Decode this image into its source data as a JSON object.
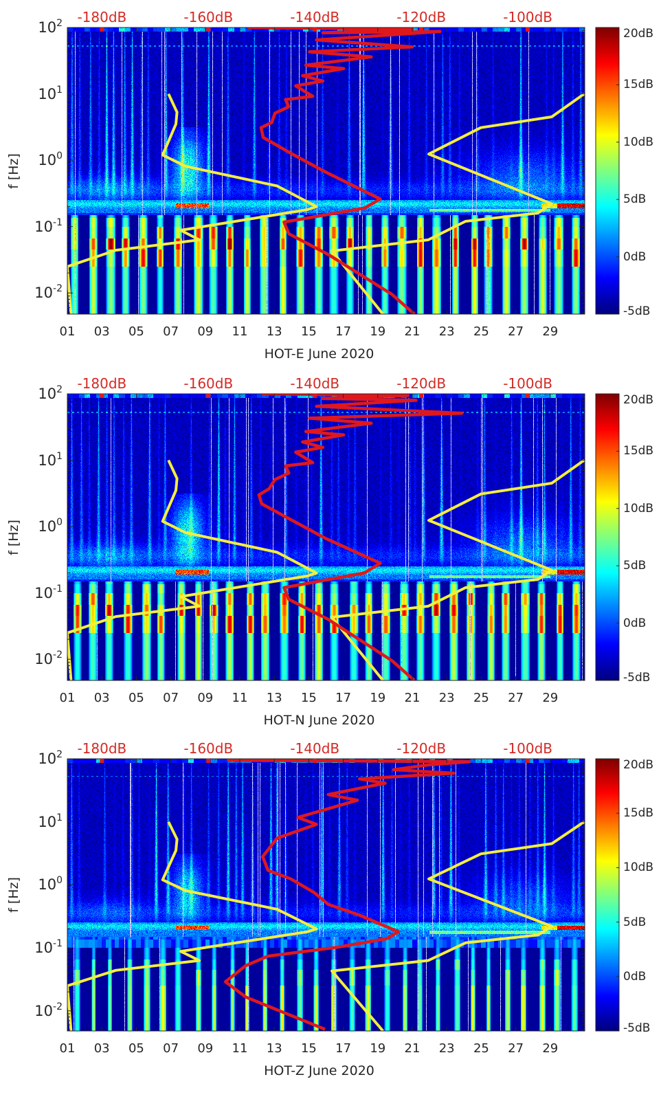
{
  "chart_data": [
    {
      "type": "heatmap",
      "title": "",
      "xlabel": "HOT-E June 2020",
      "ylabel": "f [Hz]",
      "x_ticks": [
        "01",
        "03",
        "05",
        "07",
        "09",
        "11",
        "13",
        "15",
        "17",
        "19",
        "21",
        "23",
        "25",
        "27",
        "29"
      ],
      "xlim": [
        1,
        31
      ],
      "yscale": "log",
      "ylim": [
        0.0048,
        100
      ],
      "y_ticks": [
        {
          "base": "10",
          "exp": "2",
          "value": 100
        },
        {
          "base": "10",
          "exp": "1",
          "value": 10
        },
        {
          "base": "10",
          "exp": "0",
          "value": 1
        },
        {
          "base": "10",
          "exp": "-1",
          "value": 0.1
        },
        {
          "base": "10",
          "exp": "-2",
          "value": 0.01
        }
      ],
      "top_axis": {
        "range": [
          -186.5,
          -89.3
        ],
        "ticks": [
          {
            "label": "-180dB",
            "value": -180
          },
          {
            "label": "-160dB",
            "value": -160
          },
          {
            "label": "-140dB",
            "value": -140
          },
          {
            "label": "-120dB",
            "value": -120
          },
          {
            "label": "-100dB",
            "value": -100
          }
        ]
      },
      "colorbar": {
        "colormap": "jet",
        "range": [
          -5,
          20
        ],
        "ticks": [
          {
            "label": "20dB",
            "value": 20
          },
          {
            "label": "15dB",
            "value": 15
          },
          {
            "label": "10dB",
            "value": 10
          },
          {
            "label": "5dB",
            "value": 5
          },
          {
            "label": "0dB",
            "value": 0
          },
          {
            "label": "-5dB",
            "value": -5
          }
        ]
      },
      "curves": [
        {
          "color": "#f4ee3c",
          "points": [
            [
              -167.5,
              10
            ],
            [
              -165.9,
              5.3
            ],
            [
              -166.1,
              3.5
            ],
            [
              -168.6,
              1.2
            ],
            [
              -164.3,
              0.81
            ],
            [
              -147.1,
              0.41
            ],
            [
              -139.7,
              0.2
            ],
            [
              -141.4,
              0.18
            ],
            [
              -165.2,
              0.088
            ],
            [
              -161.7,
              0.063
            ],
            [
              -177.4,
              0.044
            ],
            [
              -186.5,
              0.025
            ],
            [
              -185.8,
              0.0048
            ]
          ]
        },
        {
          "color": "#f4ee3c",
          "points": [
            [
              -89.4,
              10
            ],
            [
              -95.5,
              4.5
            ],
            [
              -108.8,
              3.1
            ],
            [
              -118.6,
              1.24
            ],
            [
              -95.5,
              0.22
            ],
            [
              -98.1,
              0.16
            ],
            [
              -111.7,
              0.12
            ],
            [
              -118.7,
              0.063
            ],
            [
              -136.8,
              0.043
            ],
            [
              -127.2,
              0.0048
            ]
          ]
        },
        {
          "color": "#e0181c",
          "points": [
            [
              -152.6,
              100
            ],
            [
              -121.7,
              95
            ],
            [
              -138.5,
              83
            ],
            [
              -116.5,
              87
            ],
            [
              -139.7,
              65
            ],
            [
              -121.7,
              51
            ],
            [
              -141.0,
              43
            ],
            [
              -129.4,
              36
            ],
            [
              -141.7,
              27
            ],
            [
              -134.6,
              24
            ],
            [
              -142.3,
              18.8
            ],
            [
              -138.5,
              15.6
            ],
            [
              -143.6,
              13.2
            ],
            [
              -140.4,
              9.2
            ],
            [
              -145.5,
              8.2
            ],
            [
              -144.9,
              6.4
            ],
            [
              -147.5,
              5.1
            ],
            [
              -148.1,
              3.7
            ],
            [
              -150.1,
              3.1
            ],
            [
              -149.7,
              2.2
            ],
            [
              -144.5,
              1.27
            ],
            [
              -138.1,
              0.67
            ],
            [
              -127.7,
              0.26
            ],
            [
              -130.7,
              0.19
            ],
            [
              -145.8,
              0.117
            ],
            [
              -144.9,
              0.078
            ],
            [
              -137.5,
              0.038
            ],
            [
              -125.5,
              0.0095
            ],
            [
              -121.3,
              0.0048
            ]
          ]
        }
      ]
    },
    {
      "type": "heatmap",
      "title": "",
      "xlabel": "HOT-N June 2020",
      "ylabel": "f [Hz]",
      "x_ticks": [
        "01",
        "03",
        "05",
        "07",
        "09",
        "11",
        "13",
        "15",
        "17",
        "19",
        "21",
        "23",
        "25",
        "27",
        "29"
      ],
      "xlim": [
        1,
        31
      ],
      "yscale": "log",
      "ylim": [
        0.0048,
        100
      ],
      "y_ticks": [
        {
          "base": "10",
          "exp": "2",
          "value": 100
        },
        {
          "base": "10",
          "exp": "1",
          "value": 10
        },
        {
          "base": "10",
          "exp": "0",
          "value": 1
        },
        {
          "base": "10",
          "exp": "-1",
          "value": 0.1
        },
        {
          "base": "10",
          "exp": "-2",
          "value": 0.01
        }
      ],
      "top_axis": {
        "range": [
          -186.5,
          -89.3
        ],
        "ticks": [
          {
            "label": "-180dB",
            "value": -180
          },
          {
            "label": "-160dB",
            "value": -160
          },
          {
            "label": "-140dB",
            "value": -140
          },
          {
            "label": "-120dB",
            "value": -120
          },
          {
            "label": "-100dB",
            "value": -100
          }
        ]
      },
      "colorbar": {
        "colormap": "jet",
        "range": [
          -5,
          20
        ],
        "ticks": [
          {
            "label": "20dB",
            "value": 20
          },
          {
            "label": "15dB",
            "value": 15
          },
          {
            "label": "10dB",
            "value": 10
          },
          {
            "label": "5dB",
            "value": 5
          },
          {
            "label": "0dB",
            "value": 0
          },
          {
            "label": "-5dB",
            "value": -5
          }
        ]
      },
      "curves": [
        {
          "color": "#f4ee3c",
          "points": [
            [
              -167.5,
              10
            ],
            [
              -165.9,
              5.3
            ],
            [
              -166.1,
              3.5
            ],
            [
              -168.6,
              1.2
            ],
            [
              -164.3,
              0.81
            ],
            [
              -147.1,
              0.41
            ],
            [
              -139.7,
              0.2
            ],
            [
              -141.4,
              0.18
            ],
            [
              -165.2,
              0.088
            ],
            [
              -161.7,
              0.063
            ],
            [
              -177.4,
              0.044
            ],
            [
              -186.5,
              0.025
            ],
            [
              -185.8,
              0.0048
            ]
          ]
        },
        {
          "color": "#f4ee3c",
          "points": [
            [
              -89.4,
              10
            ],
            [
              -95.5,
              4.5
            ],
            [
              -108.8,
              3.1
            ],
            [
              -118.6,
              1.24
            ],
            [
              -95.5,
              0.22
            ],
            [
              -98.1,
              0.16
            ],
            [
              -111.7,
              0.12
            ],
            [
              -118.7,
              0.063
            ],
            [
              -136.8,
              0.043
            ],
            [
              -127.2,
              0.0048
            ]
          ]
        },
        {
          "color": "#e0181c",
          "points": [
            [
              -150.0,
              100
            ],
            [
              -122.5,
              95
            ],
            [
              -138.5,
              85
            ],
            [
              -121.0,
              80
            ],
            [
              -139.7,
              65
            ],
            [
              -112.4,
              51
            ],
            [
              -141.0,
              43
            ],
            [
              -129.4,
              36
            ],
            [
              -141.7,
              27
            ],
            [
              -134.6,
              24
            ],
            [
              -142.3,
              18.8
            ],
            [
              -138.5,
              15.6
            ],
            [
              -143.6,
              13.2
            ],
            [
              -140.4,
              9.2
            ],
            [
              -145.5,
              8.2
            ],
            [
              -144.9,
              6.4
            ],
            [
              -147.5,
              5.1
            ],
            [
              -148.6,
              3.7
            ],
            [
              -150.5,
              3.0
            ],
            [
              -150.0,
              2.2
            ],
            [
              -144.5,
              1.27
            ],
            [
              -138.1,
              0.67
            ],
            [
              -127.7,
              0.28
            ],
            [
              -130.7,
              0.2
            ],
            [
              -145.8,
              0.12
            ],
            [
              -144.9,
              0.08
            ],
            [
              -137.5,
              0.04
            ],
            [
              -125.5,
              0.0095
            ],
            [
              -121.3,
              0.0048
            ]
          ]
        }
      ]
    },
    {
      "type": "heatmap",
      "title": "",
      "xlabel": "HOT-Z June 2020",
      "ylabel": "f [Hz]",
      "x_ticks": [
        "01",
        "03",
        "05",
        "07",
        "09",
        "11",
        "13",
        "15",
        "17",
        "19",
        "21",
        "23",
        "25",
        "27",
        "29"
      ],
      "xlim": [
        1,
        31
      ],
      "yscale": "log",
      "ylim": [
        0.0048,
        100
      ],
      "y_ticks": [
        {
          "base": "10",
          "exp": "2",
          "value": 100
        },
        {
          "base": "10",
          "exp": "1",
          "value": 10
        },
        {
          "base": "10",
          "exp": "0",
          "value": 1
        },
        {
          "base": "10",
          "exp": "-1",
          "value": 0.1
        },
        {
          "base": "10",
          "exp": "-2",
          "value": 0.01
        }
      ],
      "top_axis": {
        "range": [
          -186.5,
          -89.3
        ],
        "ticks": [
          {
            "label": "-180dB",
            "value": -180
          },
          {
            "label": "-160dB",
            "value": -160
          },
          {
            "label": "-140dB",
            "value": -140
          },
          {
            "label": "-120dB",
            "value": -120
          },
          {
            "label": "-100dB",
            "value": -100
          }
        ]
      },
      "colorbar": {
        "colormap": "jet",
        "range": [
          -5,
          20
        ],
        "ticks": [
          {
            "label": "20dB",
            "value": 20
          },
          {
            "label": "15dB",
            "value": 15
          },
          {
            "label": "10dB",
            "value": 10
          },
          {
            "label": "5dB",
            "value": 5
          },
          {
            "label": "0dB",
            "value": 0
          },
          {
            "label": "-5dB",
            "value": -5
          }
        ]
      },
      "curves": [
        {
          "color": "#f4ee3c",
          "points": [
            [
              -167.5,
              10
            ],
            [
              -165.9,
              5.3
            ],
            [
              -166.1,
              3.5
            ],
            [
              -168.6,
              1.2
            ],
            [
              -164.3,
              0.81
            ],
            [
              -147.1,
              0.41
            ],
            [
              -139.7,
              0.2
            ],
            [
              -141.4,
              0.18
            ],
            [
              -165.2,
              0.088
            ],
            [
              -161.7,
              0.063
            ],
            [
              -177.4,
              0.044
            ],
            [
              -186.5,
              0.025
            ],
            [
              -185.8,
              0.0048
            ]
          ]
        },
        {
          "color": "#f4ee3c",
          "points": [
            [
              -89.4,
              10
            ],
            [
              -95.5,
              4.5
            ],
            [
              -108.8,
              3.1
            ],
            [
              -118.6,
              1.24
            ],
            [
              -95.5,
              0.22
            ],
            [
              -98.1,
              0.16
            ],
            [
              -111.7,
              0.12
            ],
            [
              -118.7,
              0.063
            ],
            [
              -136.8,
              0.043
            ],
            [
              -127.2,
              0.0048
            ]
          ]
        },
        {
          "color": "#e0181c",
          "points": [
            [
              -156.5,
              95
            ],
            [
              -111.0,
              90
            ],
            [
              -118.7,
              80
            ],
            [
              -125.2,
              67
            ],
            [
              -113.9,
              59
            ],
            [
              -131.6,
              48
            ],
            [
              -126.8,
              41
            ],
            [
              -137.5,
              27
            ],
            [
              -132.0,
              22
            ],
            [
              -143.2,
              11.7
            ],
            [
              -139.7,
              9.1
            ],
            [
              -147.1,
              5.5
            ],
            [
              -149.8,
              2.8
            ],
            [
              -148.8,
              1.7
            ],
            [
              -144.5,
              1.24
            ],
            [
              -140.1,
              0.75
            ],
            [
              -137.5,
              0.49
            ],
            [
              -131.6,
              0.33
            ],
            [
              -124.3,
              0.18
            ],
            [
              -126.5,
              0.14
            ],
            [
              -135.9,
              0.102
            ],
            [
              -148.8,
              0.074
            ],
            [
              -153.0,
              0.052
            ],
            [
              -156.8,
              0.029
            ],
            [
              -153.0,
              0.0166
            ],
            [
              -138.1,
              0.0051
            ]
          ]
        }
      ]
    }
  ]
}
